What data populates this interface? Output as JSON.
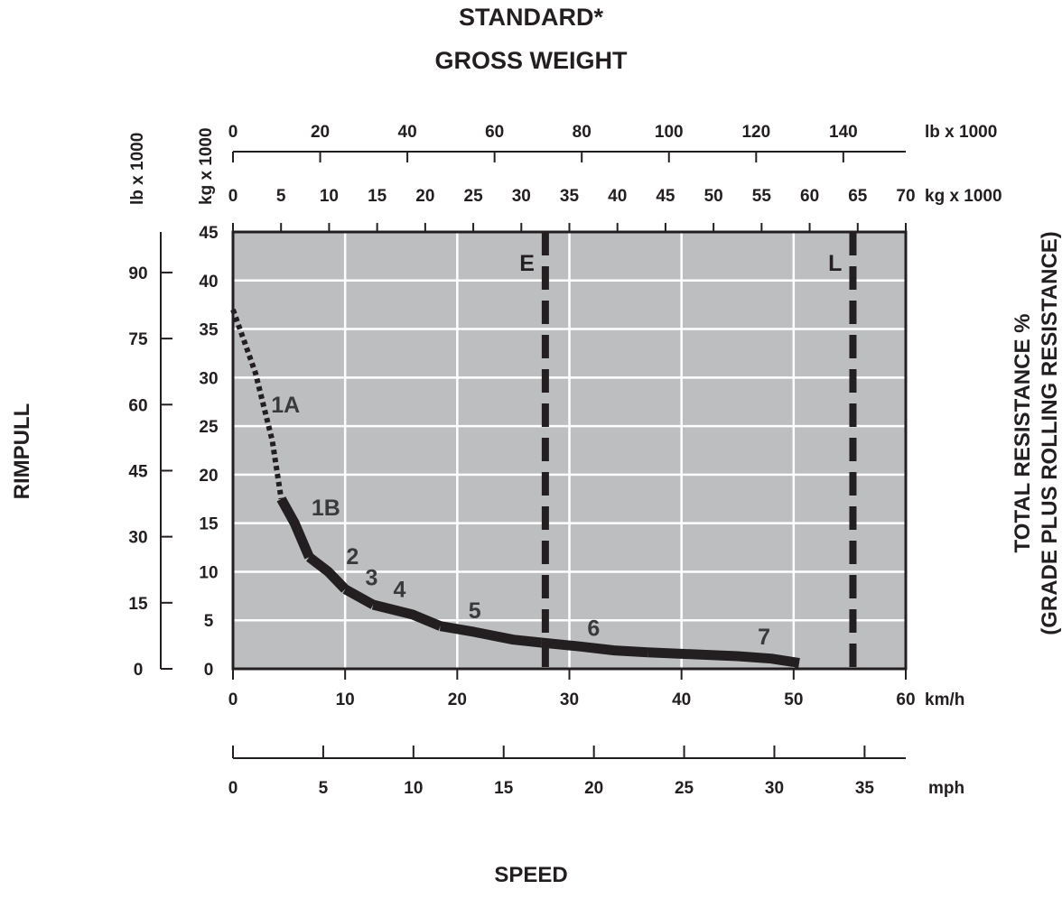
{
  "chart_data": {
    "type": "line",
    "title_lines": [
      "STANDARD*",
      "GROSS WEIGHT"
    ],
    "xlabel": "SPEED",
    "ylabel_left": "RIMPULL",
    "ylabel_right_lines": [
      "TOTAL RESISTANCE %",
      "(GRADE PLUS ROLLING RESISTANCE)"
    ],
    "x_axis_kmh": {
      "unit": "km/h",
      "ticks": [
        0,
        10,
        20,
        30,
        40,
        50,
        60
      ],
      "range": [
        0,
        60
      ]
    },
    "x_axis_mph": {
      "unit": "mph",
      "ticks": [
        0,
        5,
        10,
        15,
        20,
        25,
        30,
        35
      ]
    },
    "y_axis_kg": {
      "unit": "kg x 1000",
      "ticks": [
        0,
        5,
        10,
        15,
        20,
        25,
        30,
        35,
        40,
        45
      ],
      "range": [
        0,
        45
      ]
    },
    "y_axis_lb": {
      "unit": "lb x 1000",
      "ticks": [
        0,
        15,
        30,
        45,
        60,
        75,
        90
      ]
    },
    "top_axis_lb": {
      "unit": "lb x 1000",
      "ticks": [
        0,
        20,
        40,
        60,
        80,
        100,
        120,
        140
      ]
    },
    "top_axis_kg": {
      "unit": "kg x 1000",
      "ticks": [
        0,
        5,
        10,
        15,
        20,
        25,
        30,
        35,
        40,
        45,
        50,
        55,
        60,
        65,
        70
      ]
    },
    "corner_units": {
      "left_lb": "lb x 1000",
      "left_kg": "kg x 1000"
    },
    "grid": true,
    "weight_lines": [
      {
        "label": "E",
        "kg": 32.5
      },
      {
        "label": "L",
        "kg": 64.5
      }
    ],
    "series": [
      {
        "name": "1A",
        "style": "dotted",
        "points": [
          [
            0,
            37
          ],
          [
            2,
            30.5
          ],
          [
            3.5,
            23.5
          ],
          [
            4.3,
            17.5
          ]
        ]
      },
      {
        "name": "1B",
        "style": "solid",
        "points": [
          [
            4.3,
            17.5
          ],
          [
            5.5,
            15
          ],
          [
            6.8,
            11.5
          ]
        ]
      },
      {
        "name": "2",
        "style": "solid",
        "points": [
          [
            6.8,
            11.5
          ],
          [
            8.5,
            10
          ],
          [
            10,
            8.2
          ]
        ]
      },
      {
        "name": "3",
        "style": "solid",
        "points": [
          [
            10,
            8.2
          ],
          [
            12.5,
            6.6
          ]
        ]
      },
      {
        "name": "4",
        "style": "solid",
        "points": [
          [
            12.5,
            6.6
          ],
          [
            16,
            5.6
          ],
          [
            18.5,
            4.4
          ]
        ]
      },
      {
        "name": "5",
        "style": "solid",
        "points": [
          [
            18.5,
            4.4
          ],
          [
            21.5,
            3.8
          ],
          [
            25,
            3.0
          ],
          [
            27.5,
            2.7
          ]
        ]
      },
      {
        "name": "6",
        "style": "solid",
        "points": [
          [
            27.5,
            2.7
          ],
          [
            31,
            2.3
          ],
          [
            34,
            1.9
          ],
          [
            37,
            1.7
          ]
        ]
      },
      {
        "name": "7",
        "style": "solid",
        "points": [
          [
            37,
            1.7
          ],
          [
            41,
            1.5
          ],
          [
            45,
            1.3
          ],
          [
            48,
            1.05
          ],
          [
            50.5,
            0.6
          ]
        ]
      }
    ],
    "gear_labels": [
      {
        "text": "1A",
        "x": 3.4,
        "y": 26.4
      },
      {
        "text": "1B",
        "x": 7.0,
        "y": 15.8
      },
      {
        "text": "2",
        "x": 10.1,
        "y": 10.8
      },
      {
        "text": "3",
        "x": 11.8,
        "y": 8.6
      },
      {
        "text": "4",
        "x": 14.3,
        "y": 7.4
      },
      {
        "text": "5",
        "x": 21.0,
        "y": 5.2
      },
      {
        "text": "6",
        "x": 31.6,
        "y": 3.4
      },
      {
        "text": "7",
        "x": 46.8,
        "y": 2.5
      }
    ],
    "colors": {
      "plot_background": "#bcbec0",
      "gridline": "#ffffff",
      "curve": "#231f20",
      "text": "#231f20"
    }
  }
}
